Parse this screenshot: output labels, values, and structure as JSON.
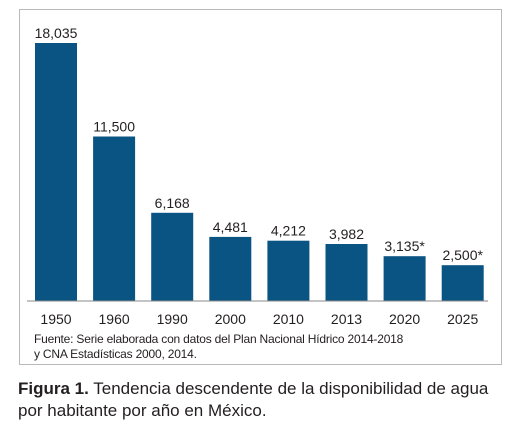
{
  "chart_data": {
    "type": "bar",
    "categories": [
      "1950",
      "1960",
      "1990",
      "2000",
      "2010",
      "2013",
      "2020",
      "2025"
    ],
    "values": [
      18035,
      11500,
      6168,
      4481,
      4212,
      3982,
      3135,
      2500
    ],
    "value_labels": [
      "18,035",
      "11,500",
      "6,168",
      "4,481",
      "4,212",
      "3,982",
      "3,135*",
      "2,500*"
    ],
    "title": "",
    "xlabel": "",
    "ylabel": "",
    "ylim": [
      0,
      18035
    ],
    "grid": false,
    "bar_color": "#0a5483"
  },
  "source": {
    "line1": "Fuente: Serie elaborada con datos del Plan Nacional Hídrico 2014-2018",
    "line2": "y CNA Estadísticas 2000, 2014."
  },
  "caption": {
    "label": "Figura 1.",
    "text": " Tendencia descendente de la disponibilidad de agua por habitante por año en México."
  }
}
